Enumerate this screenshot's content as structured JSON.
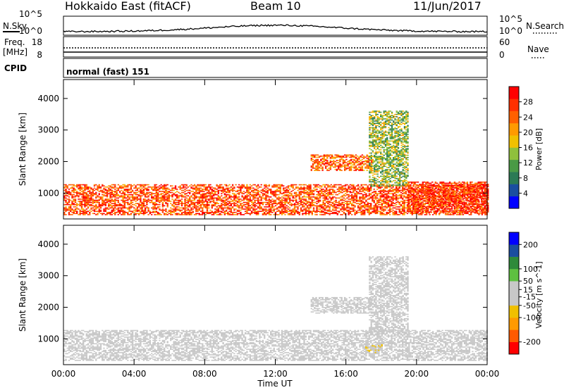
{
  "header": {
    "station": "Hokkaido East (fitACF)",
    "beam": "Beam 10",
    "date": "11/Jun/2017"
  },
  "strip_labels": {
    "nsky": "N.Sky",
    "nsearch": "N.Search",
    "freq": "Freq.",
    "mhz": "[MHz]",
    "nave": "Nave",
    "cpid": "CPID",
    "cpid_value": "normal (fast) 151",
    "noise_ticks": [
      "10^5",
      "10^0"
    ],
    "freq_ticks": [
      "18",
      "8"
    ],
    "nave_ticks": [
      "60",
      "0"
    ]
  },
  "colors": {
    "power_scale": [
      "#0000ff",
      "#1a4ea0",
      "#2b7a55",
      "#4a9a45",
      "#8fc03c",
      "#f0c000",
      "#ff9a00",
      "#ff6000",
      "#ff3000",
      "#ff0000"
    ],
    "velocity_scale": [
      "#ff0000",
      "#ff5a00",
      "#ff9a00",
      "#f0c000",
      "#c8c8c8",
      "#c8c8c8",
      "#5ec040",
      "#2e8a3a",
      "#1a4ea0",
      "#0000ff"
    ]
  },
  "chart_data": [
    {
      "type": "heatmap",
      "title": "",
      "xlabel": "Time UT",
      "ylabel": "Slant Range [km]",
      "x_ticks": [
        "00:00",
        "04:00",
        "08:00",
        "12:00",
        "16:00",
        "20:00",
        "00:00"
      ],
      "xlim_hours": [
        0,
        24
      ],
      "y_ticks": [
        1000,
        2000,
        3000,
        4000
      ],
      "ylim": [
        180,
        4600
      ],
      "colorbar": {
        "label": "Power [dB]",
        "ticks": [
          4,
          8,
          12,
          16,
          20,
          24,
          28
        ],
        "range": [
          0,
          32
        ]
      },
      "echo_regions": [
        {
          "name": "near_range_band",
          "t": [
            0.0,
            24.0
          ],
          "range_km": [
            300,
            1250
          ],
          "value_db": 26
        },
        {
          "name": "late_evening_band",
          "t": [
            19.5,
            24.0
          ],
          "range_km": [
            350,
            1350
          ],
          "value_db": 28
        },
        {
          "name": "afternoon_band",
          "t": [
            14.0,
            17.5
          ],
          "range_km": [
            1700,
            2200
          ],
          "value_db": 24
        },
        {
          "name": "evening_plume",
          "t": [
            17.3,
            19.5
          ],
          "range_km": [
            1200,
            3600
          ],
          "value_db": 14
        }
      ]
    },
    {
      "type": "heatmap",
      "title": "",
      "xlabel": "Time UT",
      "ylabel": "Slant Range [km]",
      "x_ticks": [
        "00:00",
        "04:00",
        "08:00",
        "12:00",
        "16:00",
        "20:00",
        "00:00"
      ],
      "xlim_hours": [
        0,
        24
      ],
      "y_ticks": [
        1000,
        2000,
        3000,
        4000
      ],
      "ylim": [
        180,
        4600
      ],
      "colorbar": {
        "label": "Velocity [m s^-1]",
        "ticks": [
          200,
          100,
          50,
          15,
          -15,
          -50,
          -100,
          -200
        ],
        "range": [
          -250,
          250
        ]
      },
      "echo_regions": [
        {
          "name": "near_range_band",
          "t": [
            0.0,
            24.0
          ],
          "range_km": [
            300,
            1250
          ],
          "value_ms": 0
        },
        {
          "name": "afternoon_band",
          "t": [
            14.0,
            17.5
          ],
          "range_km": [
            1800,
            2300
          ],
          "value_ms": -10
        },
        {
          "name": "orange_patch",
          "t": [
            17.0,
            18.0
          ],
          "range_km": [
            550,
            800
          ],
          "value_ms": -40
        },
        {
          "name": "evening_plume",
          "t": [
            17.3,
            19.5
          ],
          "range_km": [
            1200,
            3600
          ],
          "value_ms": 30
        }
      ]
    }
  ]
}
